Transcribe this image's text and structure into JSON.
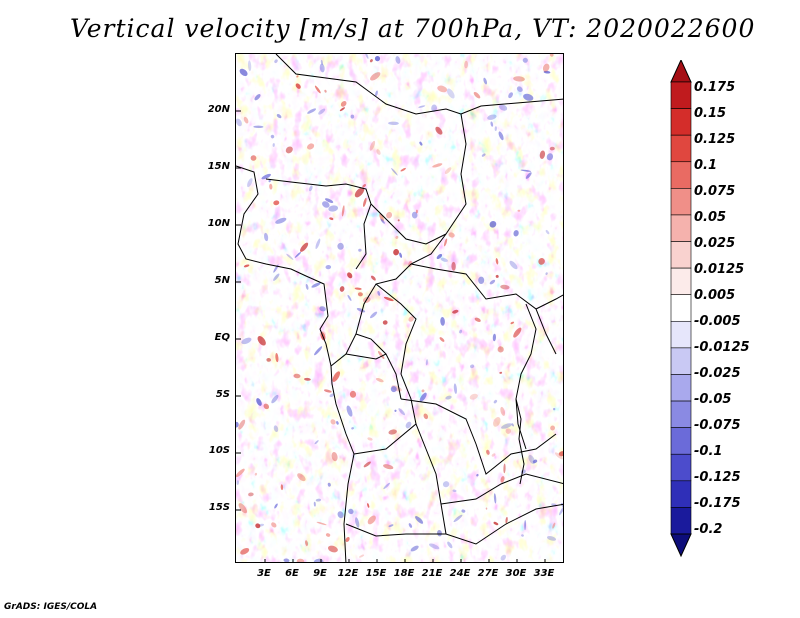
{
  "title": "Vertical velocity [m/s] at 700hPa, VT: 2020022600",
  "credit": "GrADS: IGES/COLA",
  "lat_labels": [
    "20N",
    "15N",
    "10N",
    "5N",
    "EQ",
    "5S",
    "10S",
    "15S"
  ],
  "lon_labels": [
    "3E",
    "6E",
    "9E",
    "12E",
    "15E",
    "18E",
    "21E",
    "24E",
    "27E",
    "30E",
    "33E"
  ],
  "colorbar": {
    "levels": [
      "0.175",
      "0.15",
      "0.125",
      "0.1",
      "0.075",
      "0.05",
      "0.025",
      "0.0125",
      "0.005",
      "-0.005",
      "-0.0125",
      "-0.025",
      "-0.05",
      "-0.075",
      "-0.1",
      "-0.125",
      "-0.175",
      "-0.2"
    ],
    "colors": [
      "#a50f15",
      "#c01b1e",
      "#d42d2a",
      "#e0473f",
      "#e96b63",
      "#f08f88",
      "#f5b2ad",
      "#f9d2cf",
      "#fcebea",
      "#ffffff",
      "#e6e6fb",
      "#c9c9f4",
      "#a9a9ed",
      "#8a8ae3",
      "#6b6bd9",
      "#4c4ccc",
      "#2f2fb8",
      "#1a1a9c",
      "#0d0d7a"
    ]
  }
}
